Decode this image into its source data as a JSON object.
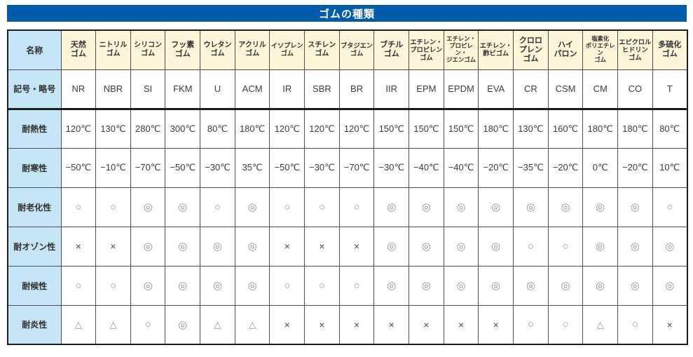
{
  "title": "ゴムの種類",
  "colors": {
    "title_bg": "#005BAB",
    "column_header_bg": "#FCF5D8",
    "row_label_bg": "#C3E5F6",
    "border": "#4e4e4e",
    "symbol_gray": "#8f959b"
  },
  "legend_symbols": {
    "excellent": "◎",
    "good": "○",
    "fair": "△",
    "poor": "×"
  },
  "table": {
    "corner_label": "名称",
    "columns": [
      "天然\nゴム",
      "ニトリル\nゴム",
      "シリコン\nゴム",
      "フッ素\nゴム",
      "ウレタン\nゴム",
      "アクリル\nゴム",
      "イソプレン\nゴム",
      "スチレン\nゴム",
      "ブタジエン\nゴム",
      "ブチル\nゴム",
      "エチレン・\nプロピレン\nゴム",
      "エチレン・\nプロピレン・\nジエンゴム",
      "エチレン・\n酢ビゴム",
      "クロロ\nプレン\nゴム",
      "ハイ\nパロン",
      "塩素化\nポリエチレン\nゴム",
      "エピクロル\nヒドリン\nゴム",
      "多硫化\nゴム"
    ],
    "rows": [
      {
        "label": "記号・略号",
        "cells": [
          "NR",
          "NBR",
          "SI",
          "FKM",
          "U",
          "ACM",
          "IR",
          "SBR",
          "BR",
          "IIR",
          "EPM",
          "EPDM",
          "EVA",
          "CR",
          "CSM",
          "CM",
          "CO",
          "T"
        ]
      },
      {
        "label": "耐熱性",
        "cells": [
          "120℃",
          "130℃",
          "280℃",
          "300℃",
          "80℃",
          "180℃",
          "120℃",
          "120℃",
          "120℃",
          "150℃",
          "150℃",
          "150℃",
          "180℃",
          "130℃",
          "160℃",
          "180℃",
          "180℃",
          "80℃"
        ]
      },
      {
        "label": "耐寒性",
        "cells": [
          "−50℃",
          "−10℃",
          "−70℃",
          "−50℃",
          "−30℃",
          "35℃",
          "−50℃",
          "−30℃",
          "−70℃",
          "−30℃",
          "−40℃",
          "−40℃",
          "−20℃",
          "−35℃",
          "−20℃",
          "0℃",
          "−20℃",
          "10℃"
        ]
      },
      {
        "label": "耐老化性",
        "cells": [
          "○",
          "○",
          "◎",
          "◎",
          "○",
          "◎",
          "○",
          "○",
          "○",
          "◎",
          "◎",
          "◎",
          "◎",
          "◎",
          "◎",
          "◎",
          "◎",
          "○"
        ]
      },
      {
        "label": "耐オゾン性",
        "cells": [
          "×",
          "×",
          "◎",
          "◎",
          "◎",
          "◎",
          "×",
          "×",
          "×",
          "◎",
          "◎",
          "◎",
          "◎",
          "○",
          "○",
          "◎",
          "◎",
          "◎"
        ]
      },
      {
        "label": "耐候性",
        "cells": [
          "○",
          "○",
          "◎",
          "◎",
          "◎",
          "◎",
          "○",
          "○",
          "○",
          "◎",
          "◎",
          "◎",
          "◎",
          "◎",
          "◎",
          "◎",
          "◎",
          "◎"
        ]
      },
      {
        "label": "耐炎性",
        "cells": [
          "△",
          "△",
          "○",
          "◎",
          "△",
          "△",
          "×",
          "×",
          "×",
          "×",
          "×",
          "×",
          "×",
          "○",
          "○",
          "△",
          "○",
          "×"
        ]
      }
    ]
  }
}
